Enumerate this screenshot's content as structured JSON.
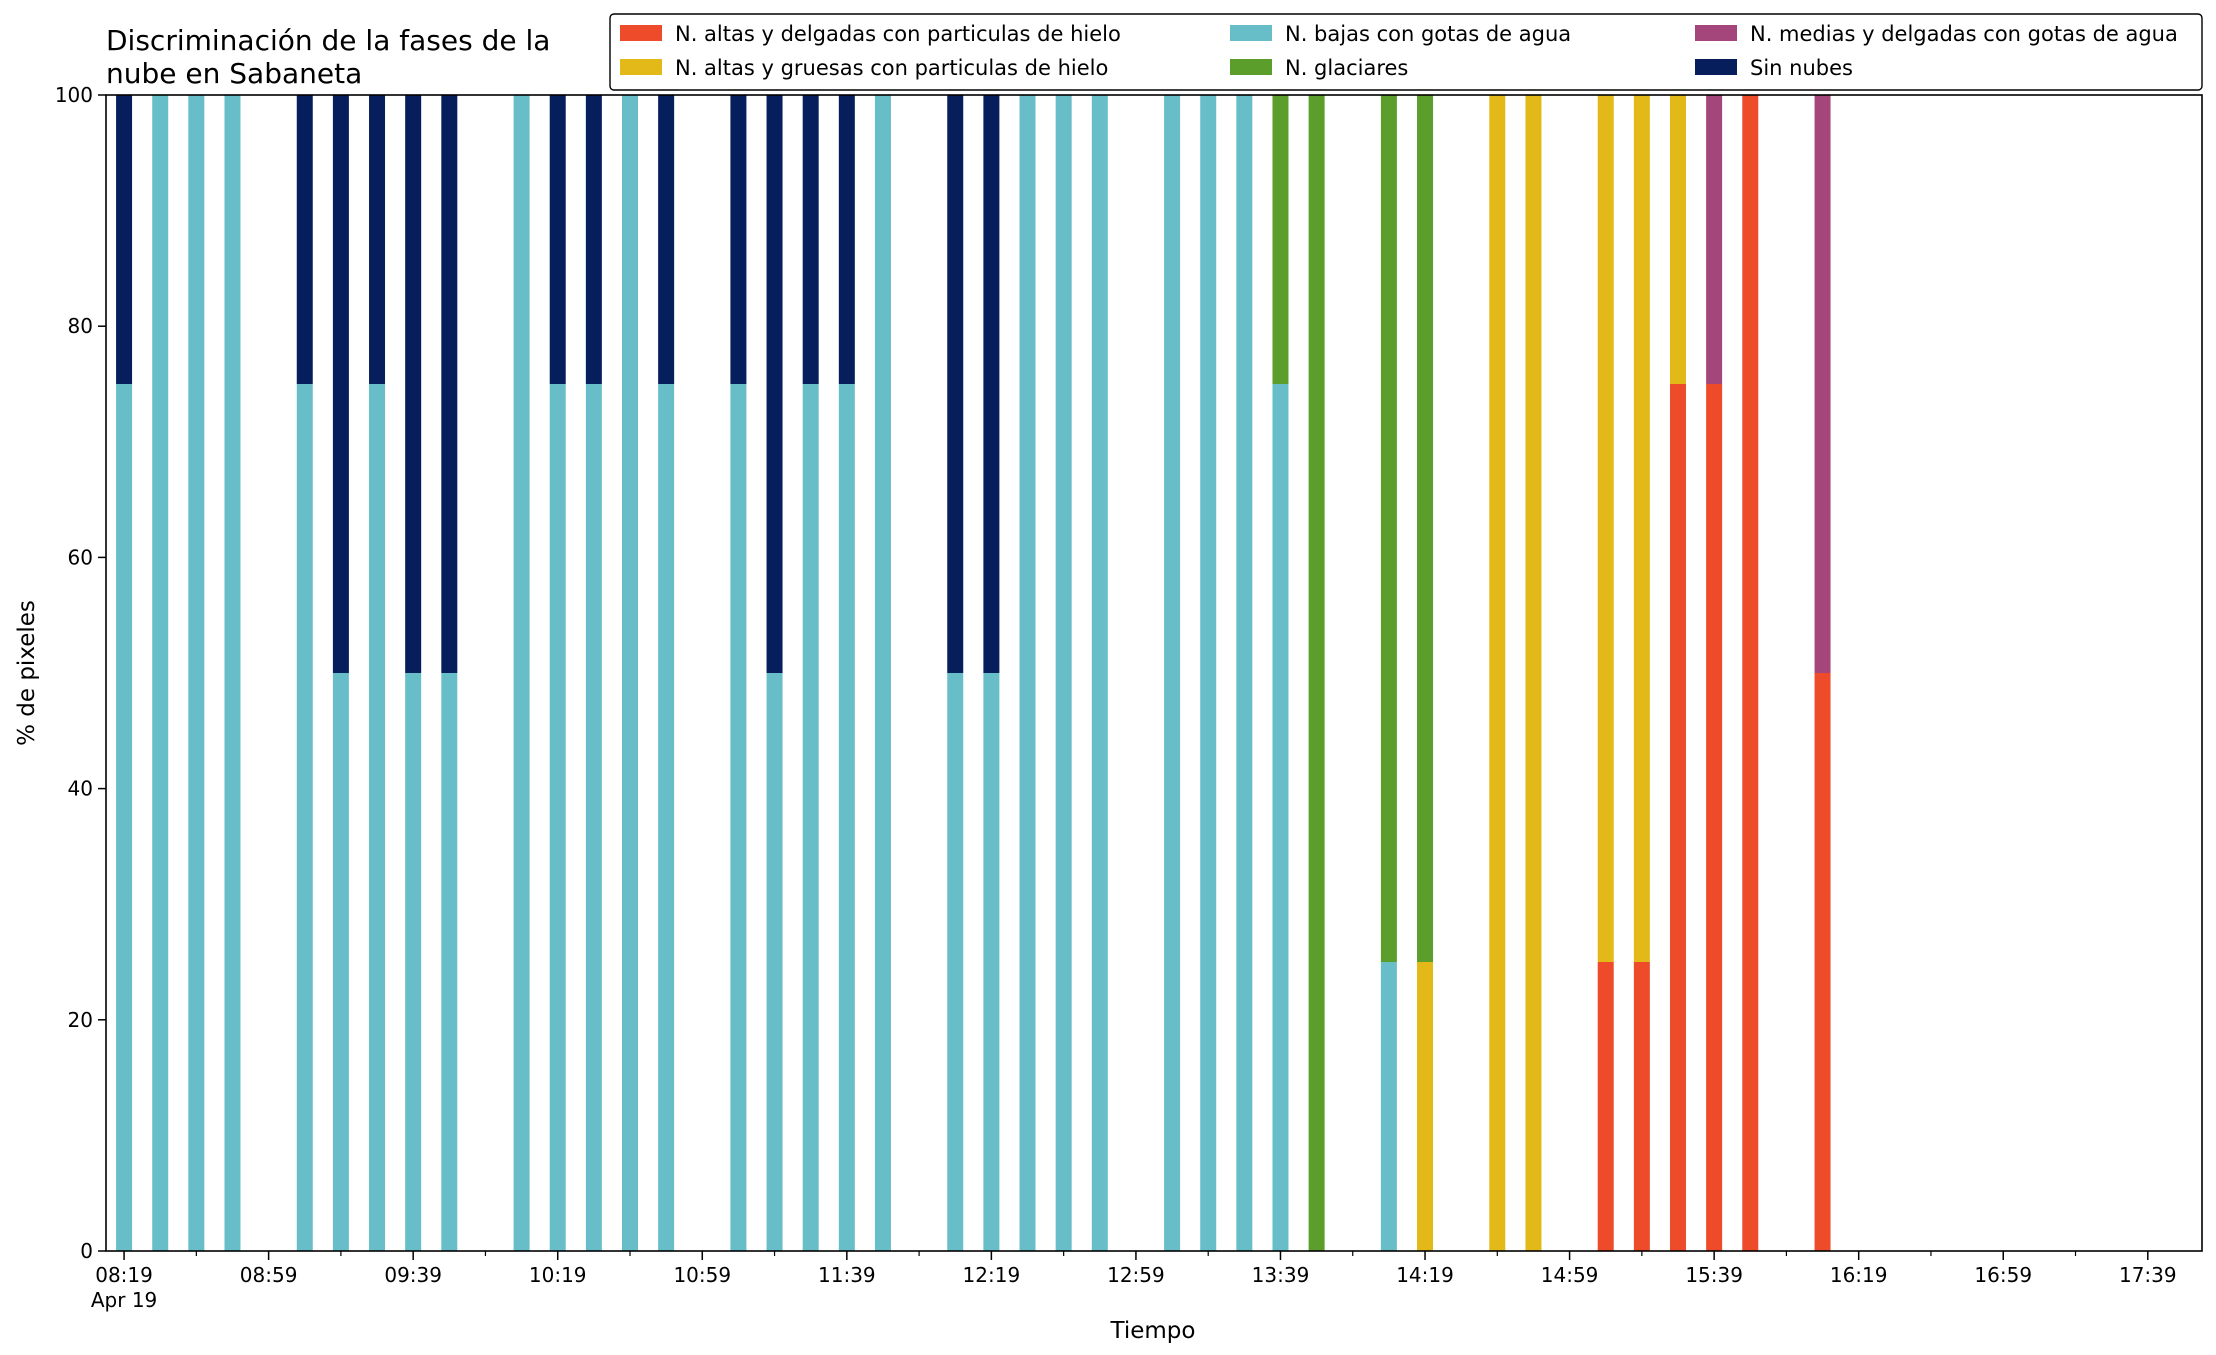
{
  "chart_data": {
    "type": "bar",
    "stacked": true,
    "title_lines": [
      "Discriminación de la fases de la",
      "nube en Sabaneta"
    ],
    "xlabel": "Tiempo",
    "ylabel": "% de pixeles",
    "ylim": [
      0,
      100
    ],
    "yticks": [
      "0",
      "20",
      "40",
      "60",
      "80",
      "100"
    ],
    "x_first_label_sub": "Apr 19",
    "xticks_major": [
      "08:19",
      "08:59",
      "09:39",
      "10:19",
      "10:59",
      "11:39",
      "12:19",
      "12:59",
      "13:39",
      "14:19",
      "14:59",
      "15:39",
      "16:19",
      "16:59",
      "17:39"
    ],
    "xlim": [
      "08:14",
      "17:54"
    ],
    "grid": false,
    "legend_position": "top-right",
    "legend": [
      {
        "name": "N. altas y delgadas con particulas de hielo",
        "color": "#ee4b2b"
      },
      {
        "name": "N. altas y gruesas con particulas de hielo",
        "color": "#e3b819"
      },
      {
        "name": "N. bajas con gotas de agua",
        "color": "#67bec8"
      },
      {
        "name": "N. glaciares",
        "color": "#5b9e2c"
      },
      {
        "name": "N. medias y delgadas con gotas de agua",
        "color": "#a4467b"
      },
      {
        "name": "Sin nubes",
        "color": "#061e5c"
      }
    ],
    "series_order_bottom_to_top": [
      "altas_delgadas",
      "altas_gruesas",
      "bajas_agua",
      "glaciares",
      "medias_agua",
      "sin_nubes"
    ],
    "bars": [
      {
        "time": "08:19",
        "bajas_agua": 75,
        "sin_nubes": 25
      },
      {
        "time": "08:29",
        "bajas_agua": 100
      },
      {
        "time": "08:39",
        "bajas_agua": 100
      },
      {
        "time": "08:49",
        "bajas_agua": 100
      },
      {
        "time": "09:09",
        "bajas_agua": 75,
        "sin_nubes": 25
      },
      {
        "time": "09:19",
        "bajas_agua": 50,
        "sin_nubes": 50
      },
      {
        "time": "09:29",
        "bajas_agua": 75,
        "sin_nubes": 25
      },
      {
        "time": "09:39",
        "bajas_agua": 50,
        "sin_nubes": 50
      },
      {
        "time": "09:49",
        "bajas_agua": 50,
        "sin_nubes": 50
      },
      {
        "time": "10:09",
        "bajas_agua": 100
      },
      {
        "time": "10:19",
        "bajas_agua": 75,
        "sin_nubes": 25
      },
      {
        "time": "10:29",
        "bajas_agua": 75,
        "sin_nubes": 25
      },
      {
        "time": "10:39",
        "bajas_agua": 100
      },
      {
        "time": "10:49",
        "bajas_agua": 75,
        "sin_nubes": 25
      },
      {
        "time": "11:09",
        "bajas_agua": 75,
        "sin_nubes": 25
      },
      {
        "time": "11:19",
        "bajas_agua": 50,
        "sin_nubes": 50
      },
      {
        "time": "11:29",
        "bajas_agua": 75,
        "sin_nubes": 25
      },
      {
        "time": "11:39",
        "bajas_agua": 75,
        "sin_nubes": 25
      },
      {
        "time": "11:49",
        "bajas_agua": 100
      },
      {
        "time": "12:09",
        "bajas_agua": 50,
        "sin_nubes": 50
      },
      {
        "time": "12:19",
        "bajas_agua": 50,
        "sin_nubes": 50
      },
      {
        "time": "12:29",
        "bajas_agua": 100
      },
      {
        "time": "12:39",
        "bajas_agua": 100
      },
      {
        "time": "12:49",
        "bajas_agua": 100
      },
      {
        "time": "13:09",
        "bajas_agua": 100
      },
      {
        "time": "13:19",
        "bajas_agua": 100
      },
      {
        "time": "13:29",
        "bajas_agua": 100
      },
      {
        "time": "13:39",
        "bajas_agua": 75,
        "glaciares": 25
      },
      {
        "time": "13:49",
        "glaciares": 100
      },
      {
        "time": "14:09",
        "bajas_agua": 25,
        "glaciares": 75
      },
      {
        "time": "14:19",
        "altas_gruesas": 25,
        "glaciares": 75
      },
      {
        "time": "14:39",
        "altas_gruesas": 100
      },
      {
        "time": "14:49",
        "altas_gruesas": 100
      },
      {
        "time": "15:09",
        "altas_delgadas": 25,
        "altas_gruesas": 75
      },
      {
        "time": "15:19",
        "altas_delgadas": 25,
        "altas_gruesas": 75
      },
      {
        "time": "15:29",
        "altas_delgadas": 75,
        "altas_gruesas": 25
      },
      {
        "time": "15:39",
        "altas_delgadas": 75,
        "medias_agua": 25
      },
      {
        "time": "15:49",
        "altas_delgadas": 100
      },
      {
        "time": "16:09",
        "altas_delgadas": 50,
        "medias_agua": 50
      }
    ]
  }
}
